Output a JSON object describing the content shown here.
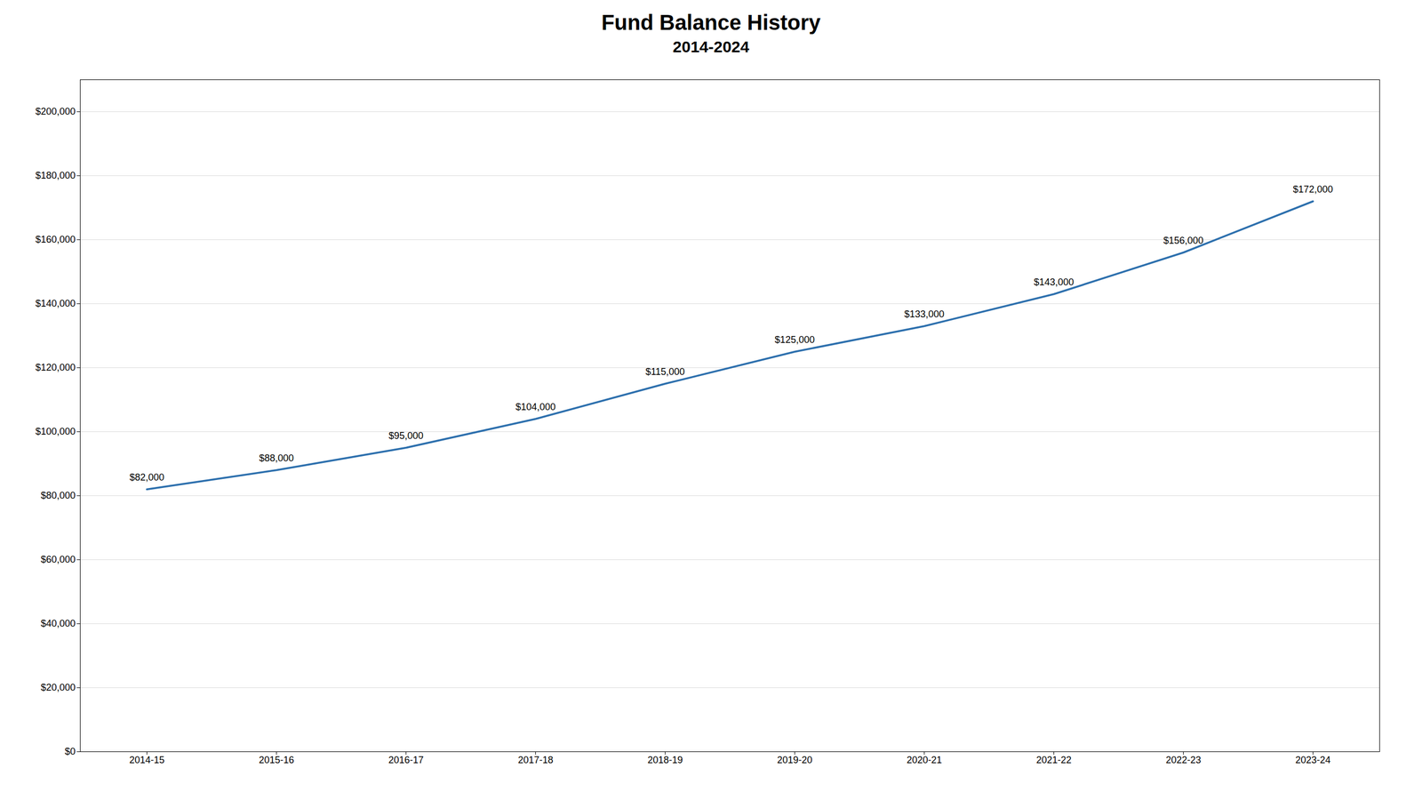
{
  "chart_data": {
    "type": "line",
    "title": "Fund Balance History",
    "subtitle": "2014-2024",
    "categories": [
      "2014-15",
      "2015-16",
      "2016-17",
      "2017-18",
      "2018-19",
      "2019-20",
      "2020-21",
      "2021-22",
      "2022-23",
      "2023-24"
    ],
    "values": [
      82000,
      88000,
      95000,
      104000,
      115000,
      125000,
      133000,
      143000,
      156000,
      172000
    ],
    "value_labels": [
      "$82,000",
      "$88,000",
      "$95,000",
      "$104,000",
      "$115,000",
      "$125,000",
      "$133,000",
      "$143,000",
      "$156,000",
      "$172,000"
    ],
    "color": "#2c6fad",
    "ylim": [
      0,
      210000
    ],
    "yticks": [
      {
        "value": 0,
        "label": "$0"
      },
      {
        "value": 20000,
        "label": "$20,000"
      },
      {
        "value": 40000,
        "label": "$40,000"
      },
      {
        "value": 60000,
        "label": "$60,000"
      },
      {
        "value": 80000,
        "label": "$80,000"
      },
      {
        "value": 100000,
        "label": "$100,000"
      },
      {
        "value": 120000,
        "label": "$120,000"
      },
      {
        "value": 140000,
        "label": "$140,000"
      },
      {
        "value": 160000,
        "label": "$160,000"
      },
      {
        "value": 180000,
        "label": "$180,000"
      },
      {
        "value": 200000,
        "label": "$200,000"
      }
    ],
    "grid": true,
    "data_labels": true
  }
}
